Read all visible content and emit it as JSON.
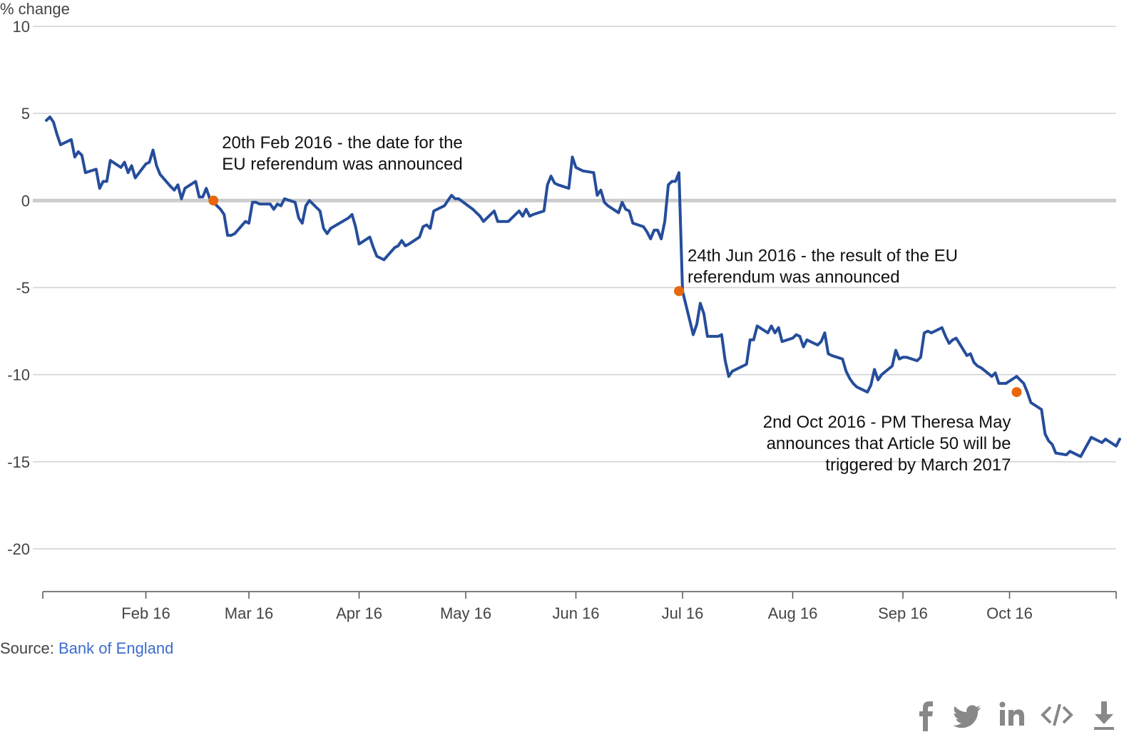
{
  "chart_data": {
    "type": "line",
    "y_axis_label": "% change",
    "ylim": [
      -20,
      10
    ],
    "y_ticks": [
      10,
      5,
      0,
      -5,
      -10,
      -15,
      -20
    ],
    "x_range": [
      "2016-01-03",
      "2016-10-31"
    ],
    "x_ticks": [
      {
        "date": "2016-02-01",
        "label": "Feb 16"
      },
      {
        "date": "2016-03-01",
        "label": "Mar 16"
      },
      {
        "date": "2016-04-01",
        "label": "Apr 16"
      },
      {
        "date": "2016-05-01",
        "label": "May 16"
      },
      {
        "date": "2016-06-01",
        "label": "Jun 16"
      },
      {
        "date": "2016-07-01",
        "label": "Jul 16"
      },
      {
        "date": "2016-08-01",
        "label": "Aug 16"
      },
      {
        "date": "2016-09-01",
        "label": "Sep 16"
      },
      {
        "date": "2016-10-01",
        "label": "Oct 16"
      }
    ],
    "grid": true,
    "line_color": "#264d9b",
    "marker_color": "#e8670c",
    "series": [
      {
        "points": [
          [
            "2016-01-04",
            4.6
          ],
          [
            "2016-01-05",
            4.8
          ],
          [
            "2016-01-06",
            4.5
          ],
          [
            "2016-01-07",
            3.8
          ],
          [
            "2016-01-08",
            3.2
          ],
          [
            "2016-01-11",
            3.5
          ],
          [
            "2016-01-12",
            2.5
          ],
          [
            "2016-01-13",
            2.8
          ],
          [
            "2016-01-14",
            2.6
          ],
          [
            "2016-01-15",
            1.6
          ],
          [
            "2016-01-18",
            1.8
          ],
          [
            "2016-01-19",
            0.7
          ],
          [
            "2016-01-20",
            1.1
          ],
          [
            "2016-01-21",
            1.1
          ],
          [
            "2016-01-22",
            2.3
          ],
          [
            "2016-01-25",
            1.9
          ],
          [
            "2016-01-26",
            2.2
          ],
          [
            "2016-01-27",
            1.6
          ],
          [
            "2016-01-28",
            2.0
          ],
          [
            "2016-01-29",
            1.3
          ],
          [
            "2016-02-01",
            2.1
          ],
          [
            "2016-02-02",
            2.2
          ],
          [
            "2016-02-03",
            2.9
          ],
          [
            "2016-02-04",
            2.0
          ],
          [
            "2016-02-05",
            1.5
          ],
          [
            "2016-02-08",
            0.8
          ],
          [
            "2016-02-09",
            0.6
          ],
          [
            "2016-02-10",
            0.9
          ],
          [
            "2016-02-11",
            0.1
          ],
          [
            "2016-02-12",
            0.7
          ],
          [
            "2016-02-15",
            1.1
          ],
          [
            "2016-02-16",
            0.2
          ],
          [
            "2016-02-17",
            0.2
          ],
          [
            "2016-02-18",
            0.7
          ],
          [
            "2016-02-19",
            0.1
          ],
          [
            "2016-02-22",
            -0.5
          ],
          [
            "2016-02-23",
            -0.8
          ],
          [
            "2016-02-24",
            -2.0
          ],
          [
            "2016-02-25",
            -2.0
          ],
          [
            "2016-02-26",
            -1.9
          ],
          [
            "2016-02-29",
            -1.2
          ],
          [
            "2016-03-01",
            -1.3
          ],
          [
            "2016-03-02",
            -0.1
          ],
          [
            "2016-03-03",
            -0.1
          ],
          [
            "2016-03-04",
            -0.2
          ],
          [
            "2016-03-07",
            -0.2
          ],
          [
            "2016-03-08",
            -0.5
          ],
          [
            "2016-03-09",
            -0.2
          ],
          [
            "2016-03-10",
            -0.3
          ],
          [
            "2016-03-11",
            0.1
          ],
          [
            "2016-03-14",
            -0.1
          ],
          [
            "2016-03-15",
            -1.0
          ],
          [
            "2016-03-16",
            -1.3
          ],
          [
            "2016-03-17",
            -0.3
          ],
          [
            "2016-03-18",
            -0.0
          ],
          [
            "2016-03-21",
            -0.6
          ],
          [
            "2016-03-22",
            -1.6
          ],
          [
            "2016-03-23",
            -1.9
          ],
          [
            "2016-03-24",
            -1.6
          ],
          [
            "2016-03-29",
            -1.0
          ],
          [
            "2016-03-30",
            -0.8
          ],
          [
            "2016-03-31",
            -1.5
          ],
          [
            "2016-04-01",
            -2.5
          ],
          [
            "2016-04-04",
            -2.1
          ],
          [
            "2016-04-05",
            -2.7
          ],
          [
            "2016-04-06",
            -3.2
          ],
          [
            "2016-04-07",
            -3.3
          ],
          [
            "2016-04-08",
            -3.4
          ],
          [
            "2016-04-11",
            -2.7
          ],
          [
            "2016-04-12",
            -2.6
          ],
          [
            "2016-04-13",
            -2.3
          ],
          [
            "2016-04-14",
            -2.6
          ],
          [
            "2016-04-15",
            -2.5
          ],
          [
            "2016-04-18",
            -2.1
          ],
          [
            "2016-04-19",
            -1.5
          ],
          [
            "2016-04-20",
            -1.4
          ],
          [
            "2016-04-21",
            -1.6
          ],
          [
            "2016-04-22",
            -0.6
          ],
          [
            "2016-04-25",
            -0.3
          ],
          [
            "2016-04-26",
            0.0
          ],
          [
            "2016-04-27",
            0.3
          ],
          [
            "2016-04-28",
            0.1
          ],
          [
            "2016-04-29",
            0.1
          ],
          [
            "2016-05-03",
            -0.5
          ],
          [
            "2016-05-04",
            -0.7
          ],
          [
            "2016-05-05",
            -0.9
          ],
          [
            "2016-05-06",
            -1.2
          ],
          [
            "2016-05-09",
            -0.6
          ],
          [
            "2016-05-10",
            -1.2
          ],
          [
            "2016-05-11",
            -1.2
          ],
          [
            "2016-05-12",
            -1.2
          ],
          [
            "2016-05-13",
            -1.2
          ],
          [
            "2016-05-16",
            -0.6
          ],
          [
            "2016-05-17",
            -0.9
          ],
          [
            "2016-05-18",
            -0.5
          ],
          [
            "2016-05-19",
            -0.9
          ],
          [
            "2016-05-20",
            -0.8
          ],
          [
            "2016-05-23",
            -0.6
          ],
          [
            "2016-05-24",
            0.9
          ],
          [
            "2016-05-25",
            1.4
          ],
          [
            "2016-05-26",
            1.0
          ],
          [
            "2016-05-27",
            0.9
          ],
          [
            "2016-05-30",
            0.7
          ],
          [
            "2016-05-31",
            2.5
          ],
          [
            "2016-06-01",
            1.9
          ],
          [
            "2016-06-02",
            1.8
          ],
          [
            "2016-06-03",
            1.7
          ],
          [
            "2016-06-06",
            1.6
          ],
          [
            "2016-06-07",
            0.3
          ],
          [
            "2016-06-08",
            0.6
          ],
          [
            "2016-06-09",
            -0.1
          ],
          [
            "2016-06-10",
            -0.3
          ],
          [
            "2016-06-13",
            -0.7
          ],
          [
            "2016-06-14",
            -0.1
          ],
          [
            "2016-06-15",
            -0.5
          ],
          [
            "2016-06-16",
            -0.6
          ],
          [
            "2016-06-17",
            -1.3
          ],
          [
            "2016-06-20",
            -1.5
          ],
          [
            "2016-06-21",
            -1.8
          ],
          [
            "2016-06-22",
            -2.2
          ],
          [
            "2016-06-23",
            -1.7
          ],
          [
            "2016-06-24",
            -1.7
          ],
          [
            "2016-06-25",
            -2.2
          ],
          [
            "2016-06-26",
            -1.2
          ],
          [
            "2016-06-27",
            0.9
          ],
          [
            "2016-06-28",
            1.1
          ],
          [
            "2016-06-29",
            1.1
          ],
          [
            "2016-06-30",
            1.6
          ],
          [
            "2016-07-01",
            -5.2
          ],
          [
            "2016-07-04",
            -7.7
          ],
          [
            "2016-07-05",
            -7.1
          ],
          [
            "2016-07-06",
            -5.9
          ],
          [
            "2016-07-07",
            -6.5
          ],
          [
            "2016-07-08",
            -7.8
          ],
          [
            "2016-07-11",
            -7.8
          ],
          [
            "2016-07-12",
            -7.7
          ],
          [
            "2016-07-13",
            -9.2
          ],
          [
            "2016-07-14",
            -10.1
          ],
          [
            "2016-07-15",
            -9.8
          ],
          [
            "2016-07-18",
            -9.5
          ],
          [
            "2016-07-19",
            -9.4
          ],
          [
            "2016-07-20",
            -8.0
          ],
          [
            "2016-07-21",
            -8.0
          ],
          [
            "2016-07-22",
            -7.2
          ],
          [
            "2016-07-25",
            -7.6
          ],
          [
            "2016-07-26",
            -7.2
          ],
          [
            "2016-07-27",
            -7.6
          ],
          [
            "2016-07-28",
            -7.3
          ],
          [
            "2016-07-29",
            -8.1
          ],
          [
            "2016-08-01",
            -7.9
          ],
          [
            "2016-08-02",
            -7.7
          ],
          [
            "2016-08-03",
            -7.8
          ],
          [
            "2016-08-04",
            -8.4
          ],
          [
            "2016-08-05",
            -8.0
          ],
          [
            "2016-08-08",
            -8.3
          ],
          [
            "2016-08-09",
            -8.1
          ],
          [
            "2016-08-10",
            -7.6
          ],
          [
            "2016-08-11",
            -8.8
          ],
          [
            "2016-08-12",
            -8.9
          ],
          [
            "2016-08-15",
            -9.1
          ],
          [
            "2016-08-16",
            -9.8
          ],
          [
            "2016-08-17",
            -10.2
          ],
          [
            "2016-08-18",
            -10.5
          ],
          [
            "2016-08-19",
            -10.7
          ],
          [
            "2016-08-22",
            -11.0
          ],
          [
            "2016-08-23",
            -10.6
          ],
          [
            "2016-08-24",
            -9.7
          ],
          [
            "2016-08-25",
            -10.3
          ],
          [
            "2016-08-26",
            -10.0
          ],
          [
            "2016-08-29",
            -9.5
          ],
          [
            "2016-08-30",
            -8.6
          ],
          [
            "2016-08-31",
            -9.1
          ],
          [
            "2016-09-01",
            -9.0
          ],
          [
            "2016-09-02",
            -9.0
          ],
          [
            "2016-09-05",
            -9.2
          ],
          [
            "2016-09-06",
            -9.0
          ],
          [
            "2016-09-07",
            -7.6
          ],
          [
            "2016-09-08",
            -7.5
          ],
          [
            "2016-09-09",
            -7.6
          ],
          [
            "2016-09-12",
            -7.3
          ],
          [
            "2016-09-13",
            -7.8
          ],
          [
            "2016-09-14",
            -8.2
          ],
          [
            "2016-09-15",
            -8.0
          ],
          [
            "2016-09-16",
            -7.9
          ],
          [
            "2016-09-19",
            -8.9
          ],
          [
            "2016-09-20",
            -8.8
          ],
          [
            "2016-09-21",
            -9.3
          ],
          [
            "2016-09-22",
            -9.5
          ],
          [
            "2016-09-23",
            -9.6
          ],
          [
            "2016-09-26",
            -10.1
          ],
          [
            "2016-09-27",
            -9.9
          ],
          [
            "2016-09-28",
            -10.5
          ],
          [
            "2016-09-29",
            -10.5
          ],
          [
            "2016-09-30",
            -10.5
          ],
          [
            "2016-10-03",
            -10.1
          ],
          [
            "2016-10-04",
            -10.3
          ],
          [
            "2016-10-05",
            -10.5
          ],
          [
            "2016-10-06",
            -11.0
          ],
          [
            "2016-10-07",
            -11.6
          ],
          [
            "2016-10-10",
            -12.0
          ],
          [
            "2016-10-11",
            -13.4
          ],
          [
            "2016-10-12",
            -13.8
          ],
          [
            "2016-10-13",
            -14.0
          ],
          [
            "2016-10-14",
            -14.5
          ],
          [
            "2016-10-17",
            -14.6
          ],
          [
            "2016-10-18",
            -14.4
          ],
          [
            "2016-10-19",
            -14.5
          ],
          [
            "2016-10-20",
            -14.6
          ],
          [
            "2016-10-21",
            -14.7
          ],
          [
            "2016-10-24",
            -13.6
          ],
          [
            "2016-10-25",
            -13.7
          ],
          [
            "2016-10-26",
            -13.8
          ],
          [
            "2016-10-27",
            -13.9
          ],
          [
            "2016-10-28",
            -13.7
          ],
          [
            "2016-10-31",
            -14.1
          ],
          [
            "2016-11-01",
            -13.7
          ]
        ]
      }
    ],
    "annotations": [
      {
        "date": "2016-02-20",
        "value": 0.0,
        "lines": [
          "20th Feb 2016 - the date for the",
          "EU referendum was announced"
        ],
        "align": "left"
      },
      {
        "date": "2016-06-30",
        "value": -5.2,
        "lines": [
          "24th Jun 2016 - the result of the EU",
          "referendum was announced"
        ],
        "align": "left"
      },
      {
        "date": "2016-10-03",
        "value": -11.0,
        "lines": [
          "2nd Oct 2016 - PM Theresa May",
          "announces that Article 50 will be",
          "triggered by March 2017"
        ],
        "align": "right"
      }
    ]
  },
  "source": {
    "prefix": "Source: ",
    "link_text": "Bank of England"
  },
  "share_icons": [
    "facebook-icon",
    "twitter-icon",
    "linkedin-icon",
    "embed-icon",
    "download-icon"
  ]
}
